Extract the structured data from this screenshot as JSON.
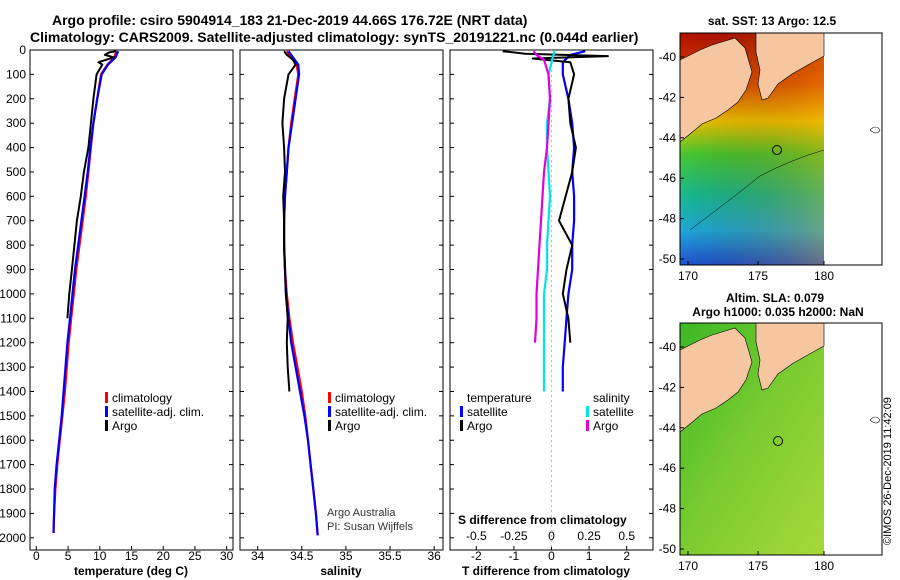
{
  "header": {
    "line1": "Argo profile: csiro 5904914_183 21-Dec-2019 44.66S 176.72E (NRT data)",
    "line2": "Climatology: CARS2009. Satellite-adjusted climatology: synTS_20191221.nc (0.044d earlier)"
  },
  "colors": {
    "climatology": "#ff0000",
    "satellite": "#0000ff",
    "argo": "#000000",
    "sat_salinity": "#00e5e5",
    "argo_salinity": "#e000e0",
    "land": "#f5c6a0"
  },
  "depth_axis": {
    "ticks": [
      "0",
      "100",
      "200",
      "300",
      "400",
      "500",
      "600",
      "700",
      "800",
      "900",
      "1000",
      "1100",
      "1200",
      "1300",
      "1400",
      "1500",
      "1600",
      "1700",
      "1800",
      "1900",
      "2000"
    ],
    "ylim": [
      0,
      2050
    ]
  },
  "chart_data": [
    {
      "type": "line",
      "id": "temperature",
      "xlabel": "temperature (deg C)",
      "xlim": [
        -1,
        31
      ],
      "xticks": [
        "0",
        "5",
        "10",
        "15",
        "20",
        "25",
        "30"
      ],
      "xtick_values": [
        0,
        5,
        10,
        15,
        20,
        25,
        30
      ],
      "legend": [
        "climatology",
        "satellite-adj. clim.",
        "Argo"
      ],
      "series": [
        {
          "name": "climatology",
          "color_key": "climatology",
          "x": [
            12.6,
            12.3,
            11.2,
            10.2,
            9.6,
            9.0,
            8.6,
            8.2,
            7.8,
            7.3,
            6.8,
            6.3,
            5.9,
            5.5,
            5.1,
            4.8,
            4.5,
            4.1,
            3.7,
            3.3,
            3.0,
            2.8,
            2.7
          ],
          "y": [
            5,
            30,
            60,
            100,
            200,
            300,
            400,
            500,
            600,
            700,
            800,
            900,
            1000,
            1100,
            1200,
            1300,
            1400,
            1500,
            1600,
            1700,
            1800,
            1900,
            1980
          ]
        },
        {
          "name": "satellite-adj. clim.",
          "color_key": "satellite",
          "x": [
            12.9,
            12.5,
            11.3,
            10.3,
            9.6,
            9.0,
            8.5,
            8.1,
            7.6,
            7.1,
            6.6,
            6.1,
            5.7,
            5.3,
            4.9,
            4.6,
            4.3,
            4.0,
            3.6,
            3.2,
            2.9,
            2.8,
            2.7
          ],
          "y": [
            5,
            30,
            60,
            100,
            200,
            300,
            400,
            500,
            600,
            700,
            800,
            900,
            1000,
            1100,
            1200,
            1300,
            1400,
            1500,
            1600,
            1700,
            1800,
            1900,
            1980
          ]
        },
        {
          "name": "Argo",
          "color_key": "argo",
          "x": [
            12.6,
            11.5,
            10.8,
            12.2,
            11.0,
            9.8,
            10.4,
            9.5,
            9.0,
            8.6,
            8.2,
            7.5,
            7.0,
            6.4,
            6.0,
            5.6,
            5.2,
            4.9
          ],
          "y": [
            5,
            10,
            20,
            30,
            40,
            50,
            60,
            100,
            200,
            300,
            400,
            500,
            600,
            700,
            800,
            900,
            1000,
            1100
          ]
        }
      ]
    },
    {
      "type": "line",
      "id": "salinity",
      "xlabel": "salinity",
      "xlim": [
        33.8,
        36.1
      ],
      "xticks": [
        "34",
        "34.5",
        "35",
        "35.5",
        "36"
      ],
      "xtick_values": [
        34,
        34.5,
        35,
        35.5,
        36
      ],
      "legend": [
        "climatology",
        "satellite-adj. clim.",
        "Argo"
      ],
      "credit1": "Argo Australia",
      "credit2": "PI: Susan Wijffels",
      "series": [
        {
          "name": "climatology",
          "color_key": "climatology",
          "x": [
            34.33,
            34.38,
            34.44,
            34.46,
            34.42,
            34.38,
            34.35,
            34.33,
            34.31,
            34.3,
            34.3,
            34.31,
            34.33,
            34.36,
            34.4,
            34.45,
            34.5,
            34.54,
            34.57,
            34.6,
            34.63,
            34.66,
            34.68
          ],
          "y": [
            5,
            30,
            60,
            100,
            200,
            300,
            400,
            500,
            600,
            700,
            800,
            900,
            1000,
            1100,
            1200,
            1300,
            1400,
            1500,
            1600,
            1700,
            1800,
            1900,
            1990
          ]
        },
        {
          "name": "satellite-adj. clim.",
          "color_key": "satellite",
          "x": [
            34.35,
            34.4,
            34.46,
            34.47,
            34.43,
            34.39,
            34.35,
            34.33,
            34.31,
            34.3,
            34.3,
            34.31,
            34.32,
            34.35,
            34.38,
            34.43,
            34.48,
            34.53,
            34.57,
            34.6,
            34.63,
            34.66,
            34.68
          ],
          "y": [
            5,
            30,
            60,
            100,
            200,
            300,
            400,
            500,
            600,
            700,
            800,
            900,
            1000,
            1100,
            1200,
            1300,
            1400,
            1500,
            1600,
            1700,
            1800,
            1900,
            1990
          ]
        },
        {
          "name": "Argo",
          "color_key": "argo",
          "x": [
            34.3,
            34.33,
            34.4,
            34.43,
            34.35,
            34.3,
            34.28,
            34.3,
            34.31,
            34.29,
            34.3,
            34.3,
            34.31,
            34.32,
            34.34,
            34.33,
            34.34,
            34.36
          ],
          "y": [
            5,
            20,
            40,
            60,
            100,
            200,
            300,
            400,
            500,
            600,
            700,
            800,
            900,
            1000,
            1100,
            1200,
            1300,
            1400
          ]
        }
      ]
    },
    {
      "type": "line",
      "id": "difference",
      "xlabel": "T difference from climatology",
      "xlim": [
        -2.7,
        2.7
      ],
      "xticks": [
        "-2",
        "-1",
        "0",
        "1",
        "2"
      ],
      "xtick_values": [
        -2,
        -1,
        0,
        1,
        2
      ],
      "s_title": "S difference from climatology",
      "s_ticks": [
        "-0.5",
        "-0.25",
        "0",
        "0.25",
        "0.5"
      ],
      "s_tick_values": [
        -0.5,
        -0.25,
        0,
        0.25,
        0.5
      ],
      "legend_temperature": [
        "temperature",
        "satellite",
        "Argo"
      ],
      "legend_salinity": [
        "salinity",
        "satellite",
        "Argo"
      ],
      "series": [
        {
          "name": "T satellite",
          "color_key": "satellite",
          "x": [
            0.9,
            0.5,
            0.3,
            0.3,
            0.45,
            0.55,
            0.6,
            0.55,
            0.6,
            0.6,
            0.55,
            0.55,
            0.45,
            0.4,
            0.35,
            0.3,
            0.3
          ],
          "y": [
            5,
            20,
            50,
            100,
            200,
            300,
            400,
            500,
            600,
            700,
            800,
            900,
            1000,
            1100,
            1200,
            1300,
            1400
          ]
        },
        {
          "name": "T Argo",
          "color_key": "argo",
          "x": [
            -1.3,
            -0.7,
            1.5,
            -0.5,
            0.5,
            0.6,
            0.45,
            0.5,
            0.65,
            0.55,
            0.2,
            0.55,
            0.4,
            0.3,
            0.45,
            0.5
          ],
          "y": [
            5,
            15,
            25,
            35,
            50,
            100,
            200,
            300,
            400,
            500,
            700,
            800,
            900,
            1000,
            1100,
            1200
          ]
        },
        {
          "name": "S satellite",
          "color_key": "sat_salinity",
          "x": [
            0.02,
            0.0,
            -0.02,
            -0.01,
            -0.03,
            -0.03,
            -0.02,
            -0.01,
            -0.02,
            -0.03,
            -0.03,
            -0.05,
            -0.05,
            -0.05
          ],
          "y": [
            5,
            50,
            100,
            200,
            300,
            400,
            500,
            600,
            700,
            800,
            900,
            1000,
            1200,
            1400
          ]
        },
        {
          "name": "S Argo",
          "color_key": "argo_salinity",
          "x": [
            -0.12,
            -0.1,
            -0.05,
            -0.02,
            -0.01,
            -0.02,
            -0.03,
            -0.05,
            -0.06,
            -0.07,
            -0.08,
            -0.09,
            -0.1,
            -0.1,
            -0.11
          ],
          "y": [
            5,
            20,
            40,
            100,
            200,
            300,
            400,
            500,
            600,
            700,
            800,
            900,
            1000,
            1100,
            1200
          ]
        }
      ]
    }
  ],
  "maps": {
    "sst": {
      "title": "sat. SST: 13 Argo: 12.5",
      "yticks": [
        "-40",
        "-42",
        "-44",
        "-46",
        "-48",
        "-50"
      ],
      "xticks": [
        "170",
        "175",
        "180"
      ]
    },
    "sla": {
      "title1": "Altim. SLA: 0.079",
      "title2": "Argo h1000: 0.035 h2000: NaN",
      "yticks": [
        "-40",
        "-42",
        "-44",
        "-46",
        "-48",
        "-50"
      ],
      "xticks": [
        "170",
        "175",
        "180"
      ]
    },
    "stamp": "©IMOS 26-Dec-2019 11:42:09"
  }
}
